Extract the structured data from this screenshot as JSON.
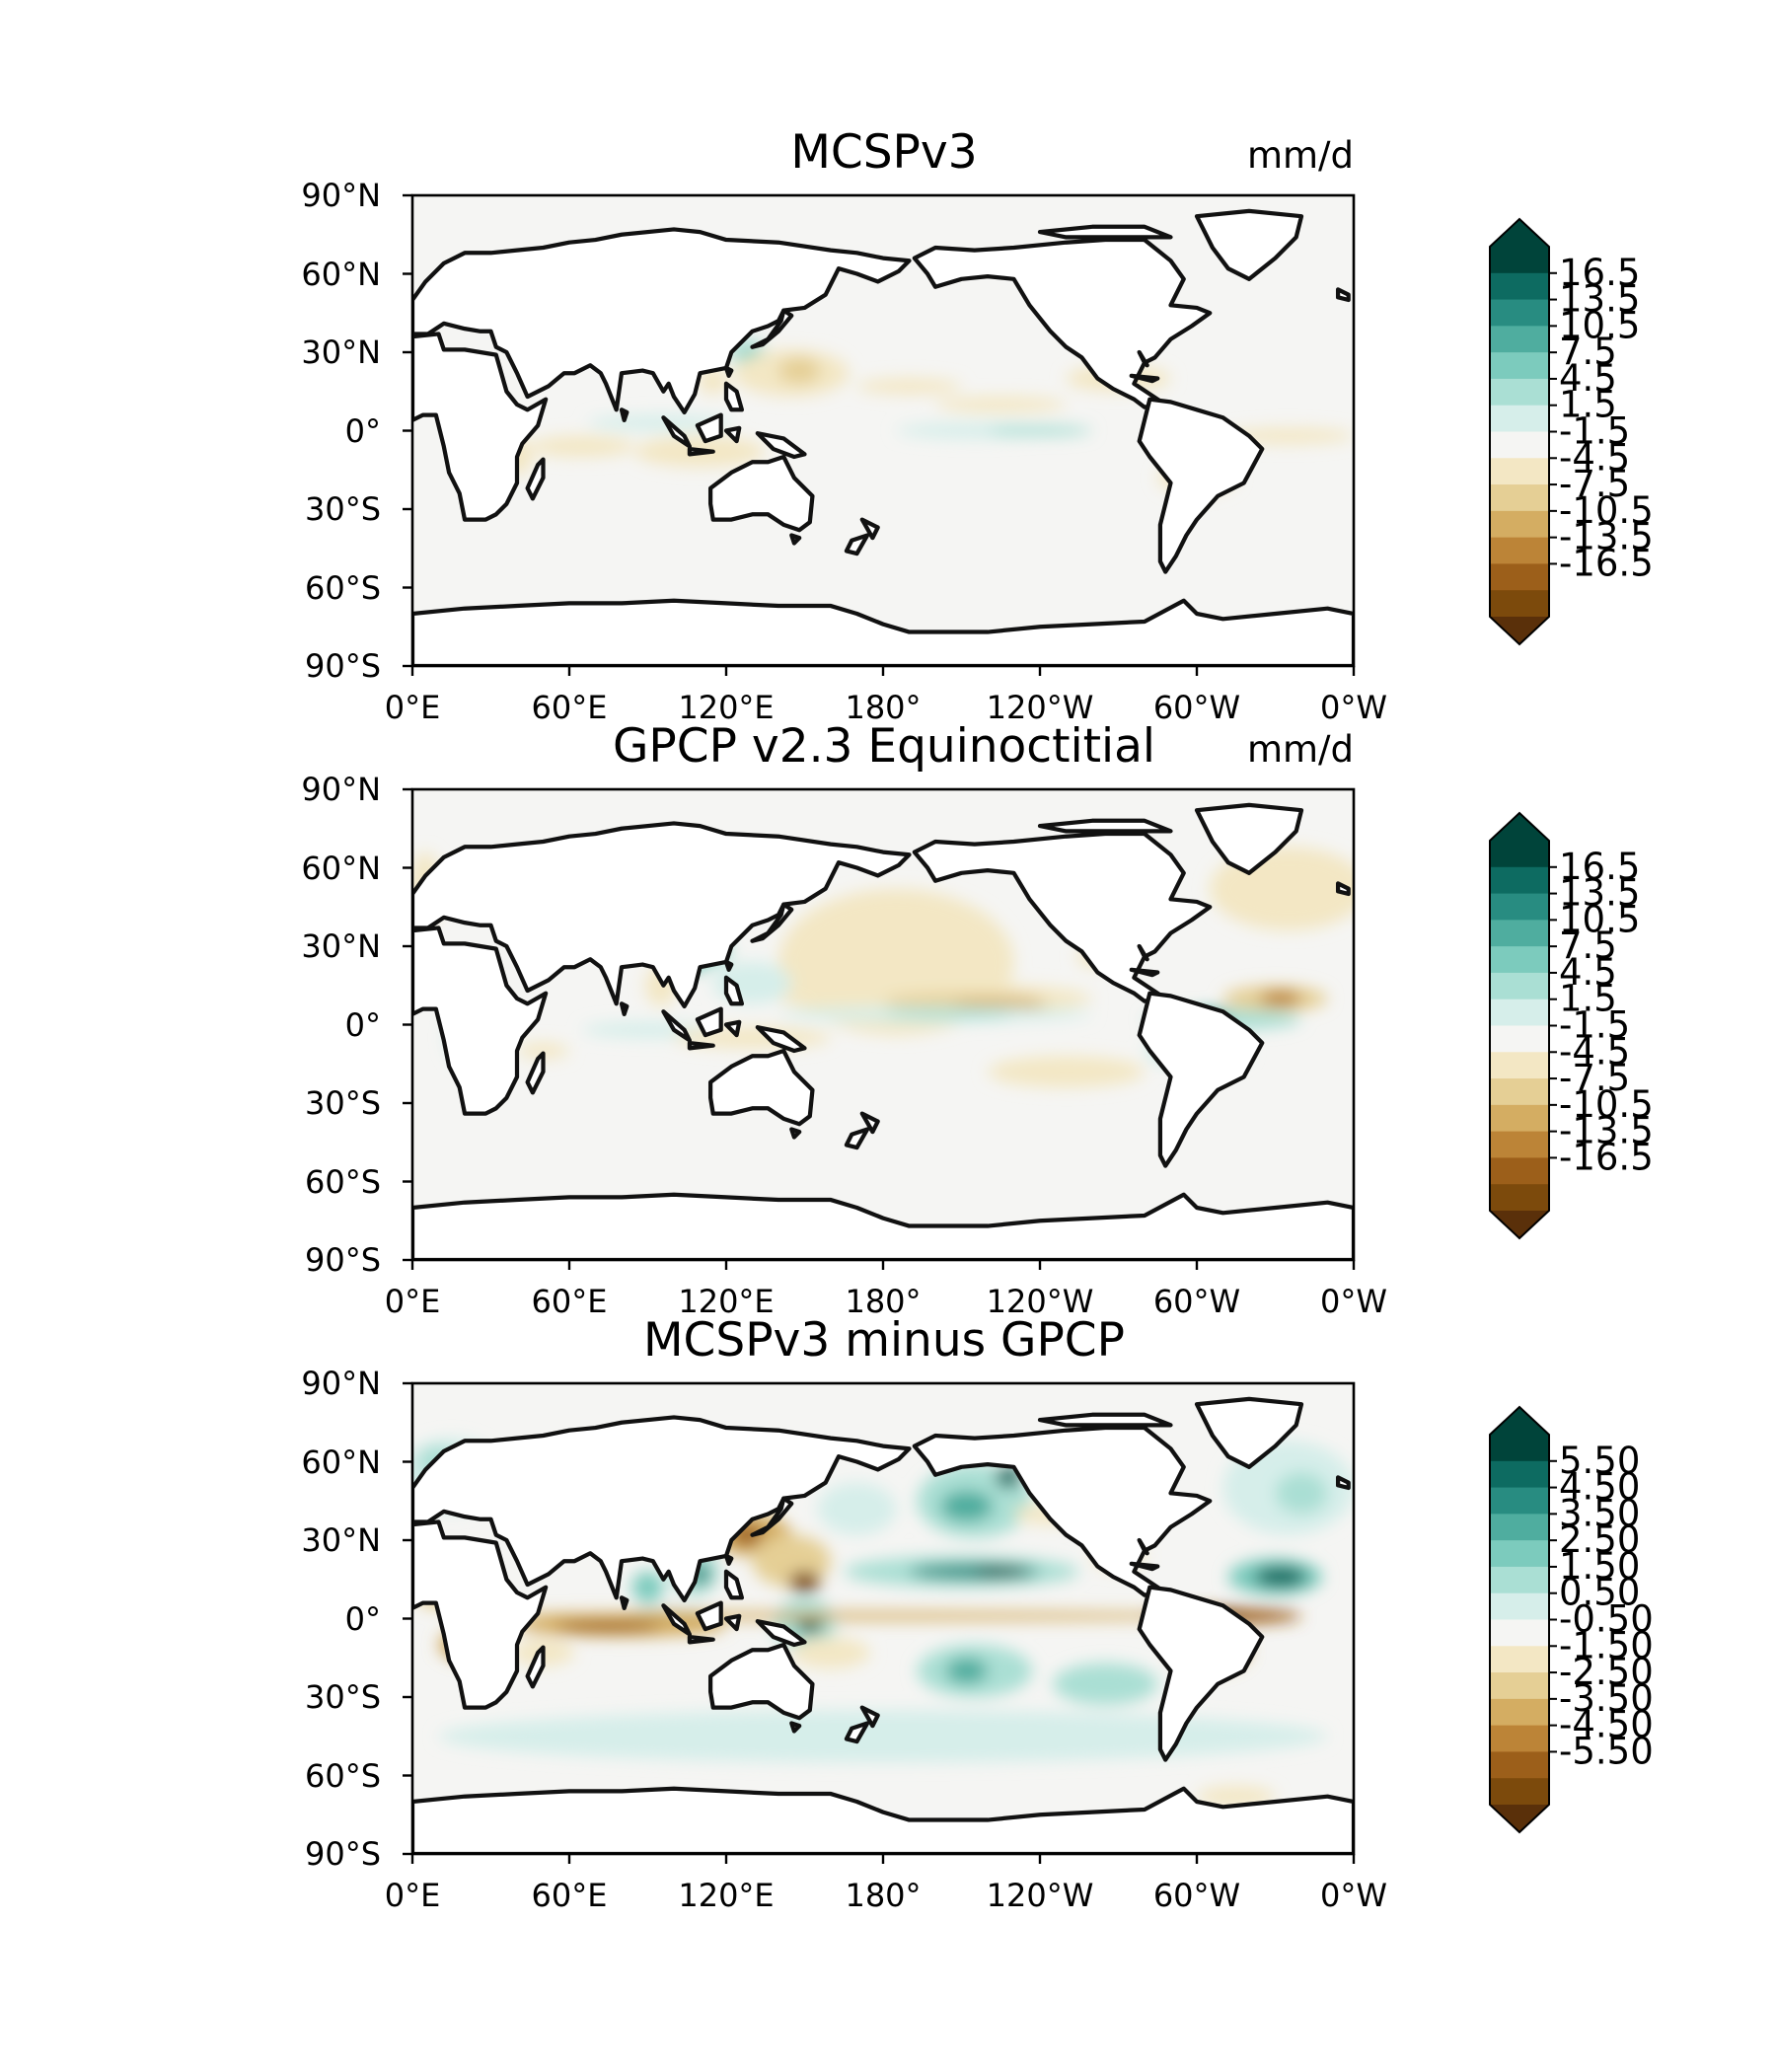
{
  "units_label": "mm/d",
  "colors": {
    "background": "#f5f5f3",
    "brown_scale": [
      "#5a300a",
      "#7c4a0c",
      "#9c5f1a",
      "#bc8437",
      "#d4ad62",
      "#e5cf95",
      "#f3e7c4"
    ],
    "teal_scale": [
      "#d6eeea",
      "#aadfd4",
      "#7ccbbd",
      "#4fad9f",
      "#288c81",
      "#0d6b61",
      "#00443a"
    ],
    "neutral": "#f5f5f3"
  },
  "axes": {
    "lat_ticks": [
      "90°N",
      "60°N",
      "30°N",
      "0°",
      "30°S",
      "60°S",
      "90°S"
    ],
    "lon_ticks": [
      "0°E",
      "60°E",
      "120°E",
      "180°",
      "120°W",
      "60°W",
      "0°W"
    ]
  },
  "panels": [
    {
      "title": "MCSPv3",
      "show_units": true,
      "colorbar_ticks": [
        "16.5",
        "13.5",
        "10.5",
        "7.5",
        "4.5",
        "1.5",
        "-1.5",
        "-4.5",
        "-7.5",
        "-10.5",
        "-13.5",
        "-16.5"
      ]
    },
    {
      "title": "GPCP v2.3 Equinoctitial",
      "show_units": true,
      "colorbar_ticks": [
        "16.5",
        "13.5",
        "10.5",
        "7.5",
        "4.5",
        "1.5",
        "-1.5",
        "-4.5",
        "-7.5",
        "-10.5",
        "-13.5",
        "-16.5"
      ]
    },
    {
      "title": "MCSPv3 minus GPCP",
      "show_units": false,
      "colorbar_ticks": [
        "5.50",
        "4.50",
        "3.50",
        "2.50",
        "1.50",
        "0.50",
        "-0.50",
        "-1.50",
        "-2.50",
        "-3.50",
        "-4.50",
        "-5.50"
      ]
    }
  ]
}
